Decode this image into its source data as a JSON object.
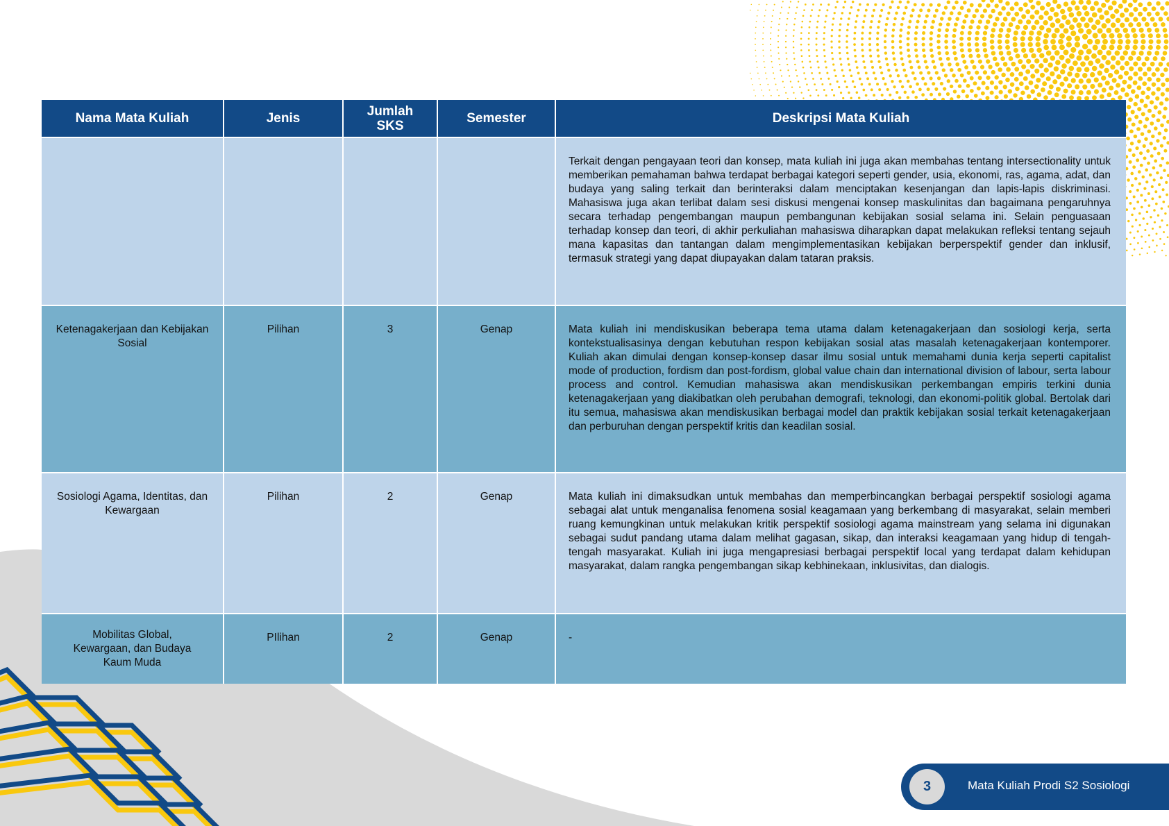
{
  "table": {
    "headers": [
      "Nama Mata Kuliah",
      "Jenis",
      "Jumlah SKS",
      "Semester",
      "Deskripsi Mata Kuliah"
    ],
    "rows": [
      {
        "nama": "",
        "jenis": "",
        "sks": "",
        "semester": "",
        "deskripsi": "Terkait dengan pengayaan teori dan konsep, mata kuliah ini juga akan membahas tentang intersectionality untuk memberikan pemahaman bahwa terdapat berbagai kategori seperti gender, usia, ekonomi, ras, agama, adat, dan budaya yang saling terkait dan berinteraksi dalam menciptakan kesenjangan dan lapis-lapis diskriminasi. Mahasiswa juga akan terlibat dalam sesi diskusi mengenai konsep maskulinitas dan bagaimana pengaruhnya secara terhadap pengembangan maupun pembangunan kebijakan sosial selama ini. Selain penguasaan terhadap konsep dan teori, di akhir perkuliahan mahasiswa diharapkan dapat melakukan refleksi tentang sejauh mana kapasitas dan tantangan dalam mengimplementasikan kebijakan berperspektif gender dan inklusif, termasuk strategi yang dapat diupayakan dalam tataran praksis."
      },
      {
        "nama": "Ketenagakerjaan dan Kebijakan Sosial",
        "jenis": "Pilihan",
        "sks": "3",
        "semester": "Genap",
        "deskripsi": "Mata kuliah ini mendiskusikan beberapa tema utama dalam ketenagakerjaan dan sosiologi kerja, serta kontekstualisasinya dengan kebutuhan respon kebijakan sosial atas masalah ketenagakerjaan kontemporer. Kuliah akan dimulai dengan konsep-konsep dasar ilmu sosial untuk memahami dunia kerja seperti capitalist mode of production, fordism dan post-fordism, global value chain dan international division of labour, serta labour process and control. Kemudian mahasiswa akan mendiskusikan perkembangan empiris terkini dunia ketenagakerjaan yang diakibatkan oleh perubahan demografi, teknologi, dan ekonomi-politik global. Bertolak dari itu semua, mahasiswa akan mendiskusikan berbagai model dan praktik kebijakan sosial terkait ketenagakerjaan dan perburuhan dengan perspektif kritis dan keadilan sosial."
      },
      {
        "nama": "Sosiologi Agama, Identitas, dan Kewargaan",
        "jenis": "Pilihan",
        "sks": "2",
        "semester": "Genap",
        "deskripsi": "Mata kuliah ini dimaksudkan untuk membahas dan memperbincangkan berbagai perspektif sosiologi agama sebagai alat untuk menganalisa fenomena sosial keagamaan yang berkembang di masyarakat, selain memberi ruang kemungkinan untuk melakukan kritik perspektif sosiologi agama mainstream yang selama ini digunakan sebagai sudut pandang utama dalam melihat gagasan, sikap, dan interaksi keagamaan yang hidup di tengah-tengah masyarakat. Kuliah ini juga mengapresiasi berbagai perspektif local yang terdapat dalam kehidupan masyarakat, dalam rangka pengembangan sikap kebhinekaan, inklusivitas, dan dialogis."
      },
      {
        "nama": "Mobilitas Global, Kewargaan, dan Budaya Kaum Muda",
        "jenis": "PIlihan",
        "sks": "2",
        "semester": "Genap",
        "deskripsi": "-"
      }
    ]
  },
  "footer": {
    "page_number": "3",
    "title": "Mata Kuliah Prodi S2 Sosiologi"
  },
  "colors": {
    "header": "#124a87",
    "row_light": "#bed4ea",
    "row_dark": "#77afcb",
    "accent_yellow": "#f9c80e",
    "gray_shape": "#d9d9d9"
  }
}
